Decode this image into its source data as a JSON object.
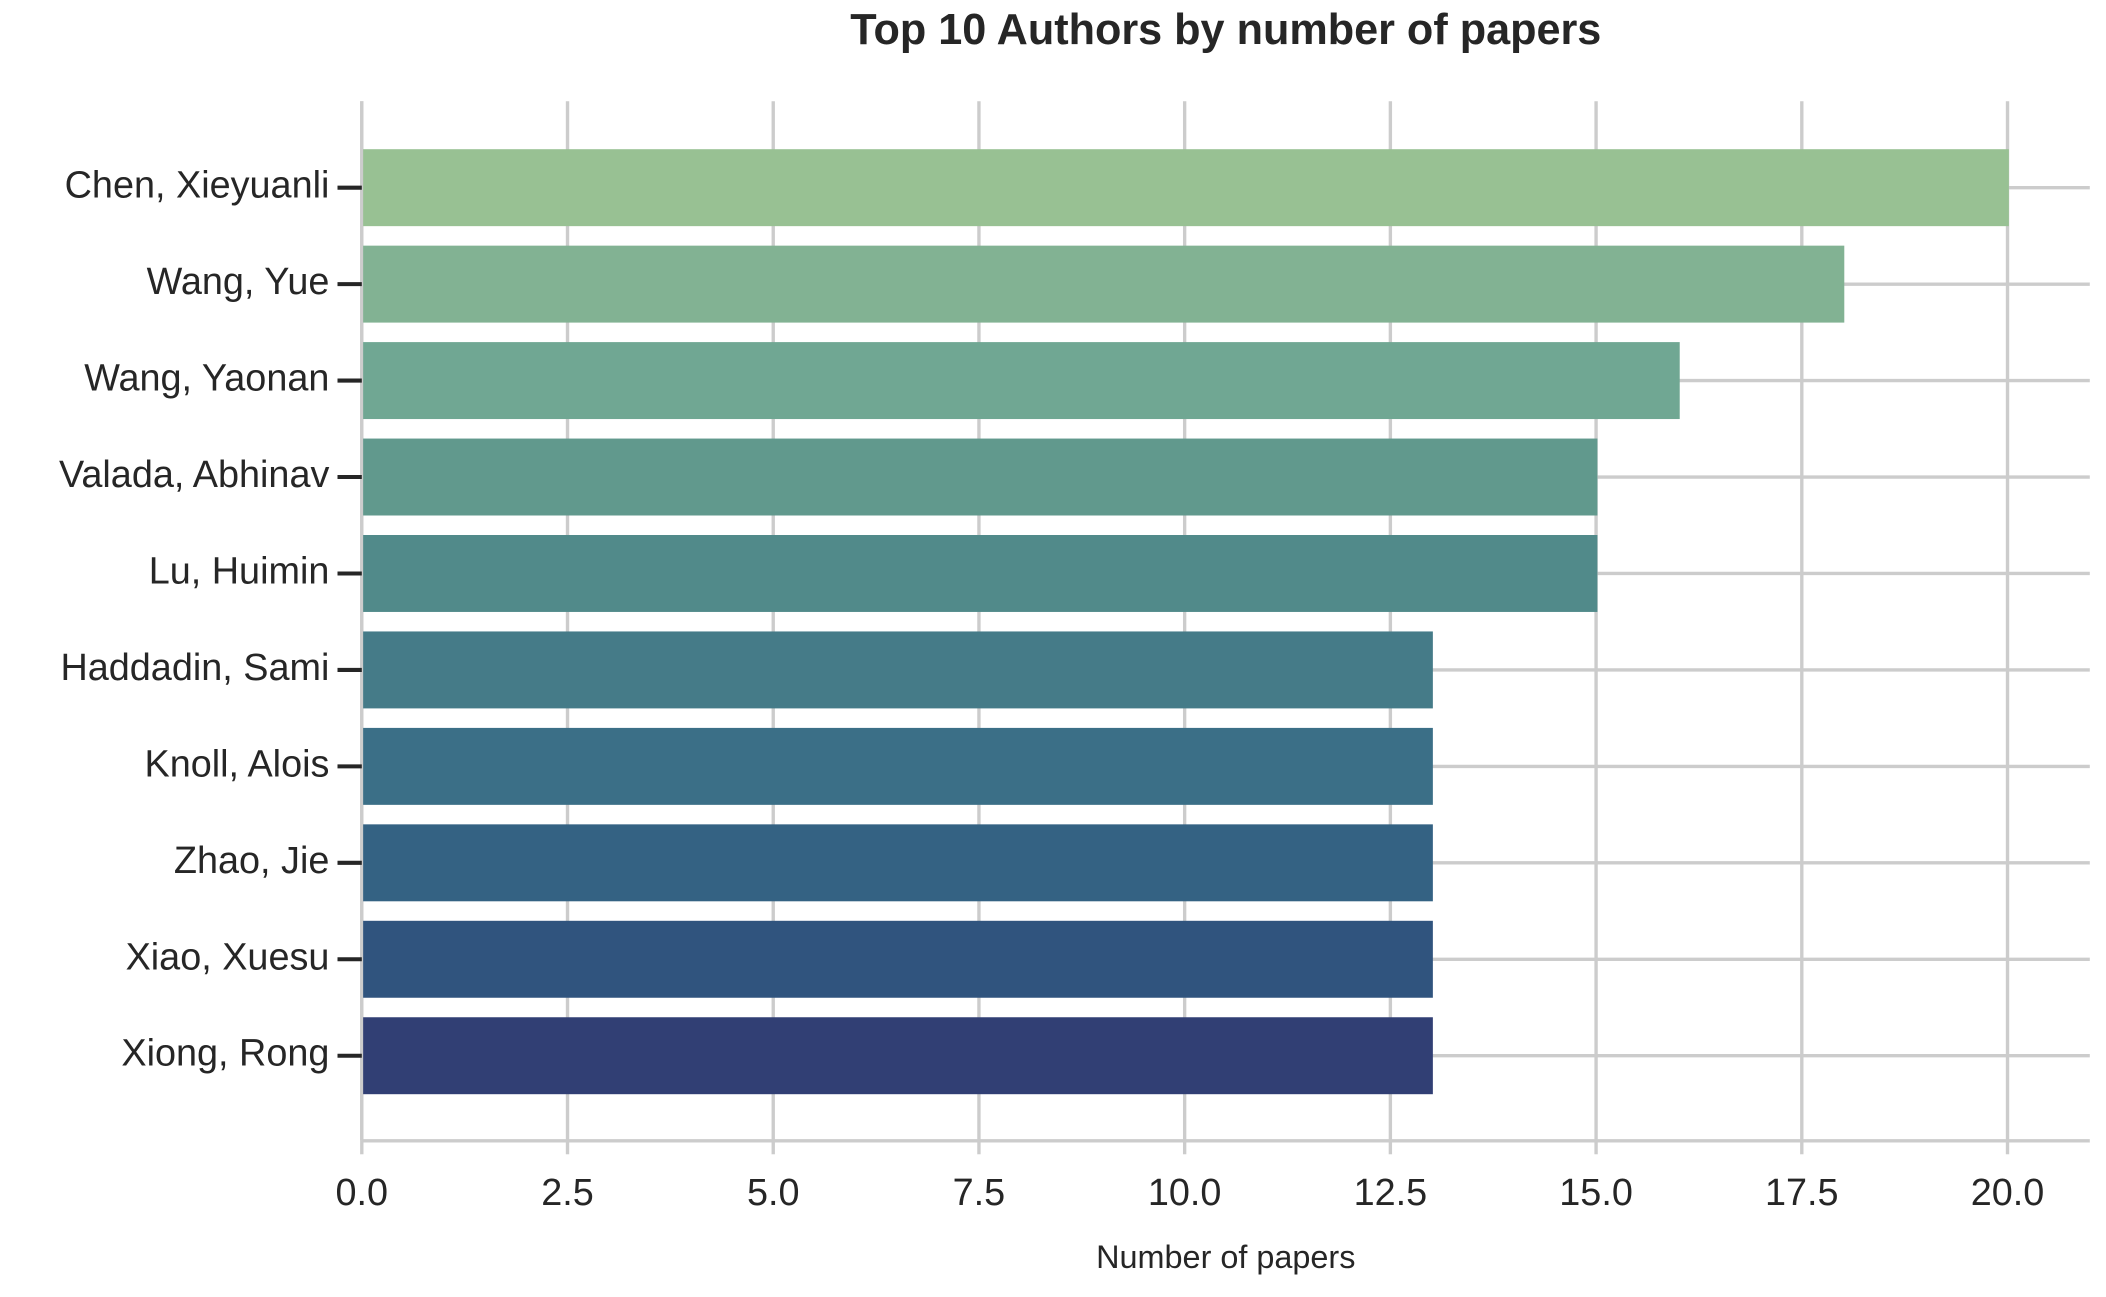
{
  "chart_data": {
    "type": "barh",
    "title": "Top 10 Authors by number of papers",
    "xlabel": "Number of papers",
    "categories": [
      "Chen, Xieyuanli",
      "Wang, Yue",
      "Wang, Yaonan",
      "Valada, Abhinav",
      "Lu, Huimin",
      "Haddadin, Sami",
      "Knoll, Alois",
      "Zhao, Jie",
      "Xiao, Xuesu",
      "Xiong, Rong"
    ],
    "values": [
      20,
      18,
      16,
      15,
      15,
      13,
      13,
      13,
      13,
      13
    ],
    "colors": [
      "#98c193",
      "#82b293",
      "#70a793",
      "#61998d",
      "#518a8a",
      "#457b88",
      "#3b6f87",
      "#346283",
      "#30547e",
      "#313f74"
    ],
    "xlim": [
      0,
      21
    ],
    "xticks": [
      {
        "value": 0,
        "label": "0.0"
      },
      {
        "value": 2.5,
        "label": "2.5"
      },
      {
        "value": 5,
        "label": "5.0"
      },
      {
        "value": 7.5,
        "label": "7.5"
      },
      {
        "value": 10,
        "label": "10.0"
      },
      {
        "value": 12.5,
        "label": "12.5"
      },
      {
        "value": 15,
        "label": "15.0"
      },
      {
        "value": 17.5,
        "label": "17.5"
      },
      {
        "value": 20,
        "label": "20.0"
      }
    ],
    "grid": true
  }
}
